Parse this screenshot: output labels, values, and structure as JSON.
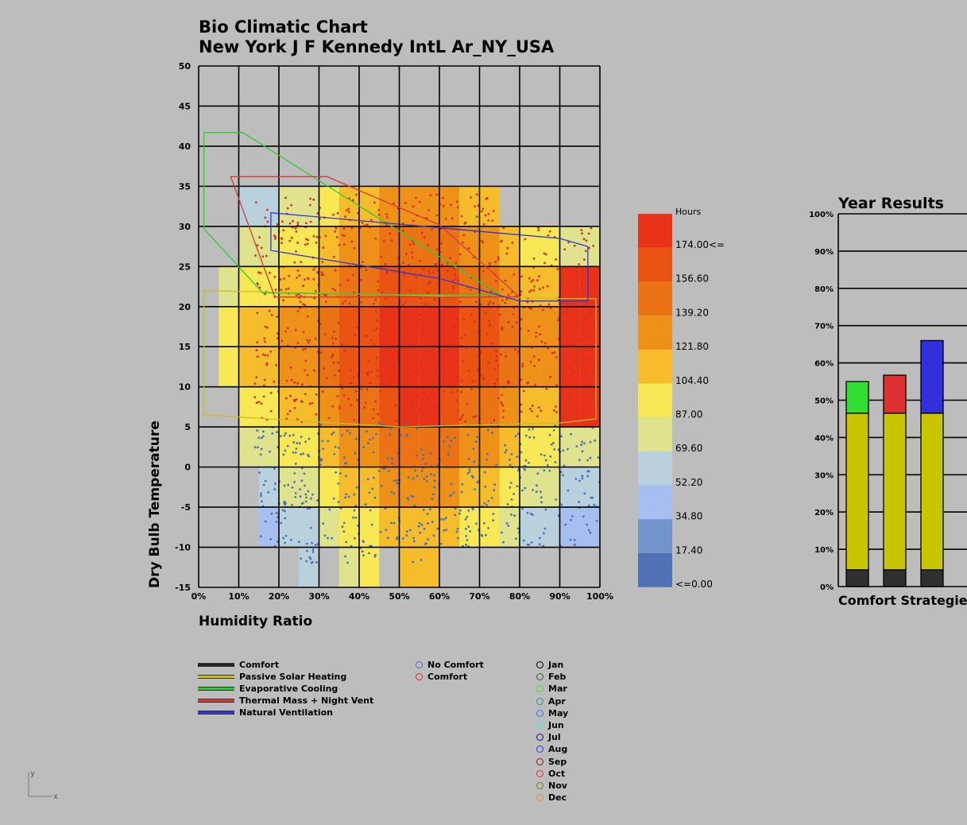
{
  "title": {
    "line1": "Bio Climatic Chart",
    "line2": "New York J F Kennedy IntL Ar_NY_USA"
  },
  "chart_data": [
    {
      "type": "heatmap",
      "title": "Bio Climatic Chart",
      "subtitle": "New York J F Kennedy IntL Ar_NY_USA",
      "xlabel": "Humidity Ratio",
      "ylabel": "Dry Bulb Temperature",
      "x_ticks": [
        "0%",
        "10%",
        "20%",
        "30%",
        "40%",
        "50%",
        "60%",
        "70%",
        "80%",
        "90%",
        "100%"
      ],
      "y_ticks": [
        "-15",
        "-10",
        "-5",
        "0",
        "5",
        "10",
        "15",
        "20",
        "25",
        "30",
        "35",
        "40",
        "45",
        "50"
      ],
      "xlim": [
        0,
        100
      ],
      "ylim": [
        -15,
        50
      ],
      "grid": true,
      "legend_title": "Hours",
      "legend_labels": [
        "174.00<=",
        "156.60",
        "139.20",
        "121.80",
        "104.40",
        "87.00",
        "69.60",
        "52.20",
        "34.80",
        "17.40",
        "<=0.00"
      ],
      "legend_colors": [
        "#e8321a",
        "#eb5313",
        "#ea7413",
        "#ee9119",
        "#f5bd2c",
        "#f9e856",
        "#dfe38e",
        "#b9d1dd",
        "#a6bff0",
        "#7393cc",
        "#4f72b4"
      ],
      "polygons": [
        {
          "name": "Passive Solar Heating",
          "color": "#c8c01f",
          "points": [
            [
              1.3,
              22
            ],
            [
              90,
              21
            ],
            [
              99,
              21
            ],
            [
              99,
              6
            ],
            [
              90,
              5.5
            ],
            [
              50,
              5
            ],
            [
              1.3,
              6.5
            ]
          ]
        },
        {
          "name": "Evaporative Cooling",
          "color": "#2ecc2e",
          "points": [
            [
              1.3,
              41.7
            ],
            [
              11,
              41.7
            ],
            [
              75,
              21.5
            ],
            [
              50,
              21.5
            ],
            [
              19,
              21.7
            ],
            [
              16,
              21.7
            ],
            [
              1.3,
              29.7
            ]
          ]
        },
        {
          "name": "Thermal Mass + Night Vent",
          "color": "#d83838",
          "points": [
            [
              8,
              36.2
            ],
            [
              32,
              36.2
            ],
            [
              60,
              30.2
            ],
            [
              80,
              21.2
            ],
            [
              36,
              21.2
            ],
            [
              19,
              21.2
            ]
          ]
        },
        {
          "name": "Natural Ventilation",
          "color": "#3434d4",
          "points": [
            [
              18,
              31.7
            ],
            [
              90,
              28.5
            ],
            [
              97,
              27.5
            ],
            [
              97,
              20.7
            ],
            [
              80,
              20.7
            ],
            [
              60,
              23.5
            ],
            [
              18,
              27
            ]
          ]
        }
      ],
      "legend_lines": [
        "Comfort",
        "Passive Solar Heating",
        "Evaporative Cooling",
        "Thermal Mass + Night Vent",
        "Natural Ventilation"
      ],
      "legend_points": [
        "No Comfort",
        "Comfort"
      ],
      "legend_months": [
        "Jan",
        "Feb",
        "Mar",
        "Apr",
        "May",
        "Jun",
        "Jul",
        "Aug",
        "Sep",
        "Oct",
        "Nov",
        "Dec"
      ],
      "month_colors": [
        "#000000",
        "#1a6e1a",
        "#2ee82e",
        "#1a9a9a",
        "#2e7ee8",
        "#3ce8e8",
        "#10108e",
        "#2e2ee8",
        "#8e1a1a",
        "#e82e2e",
        "#7e7e0a",
        "#ee8e2e"
      ],
      "point_colors": {
        "no_comfort": "#4d6fb8",
        "comfort": "#d83020"
      }
    },
    {
      "type": "bar",
      "title": "Year Results",
      "xlabel": "Comfort Strategie",
      "y_ticks": [
        "0%",
        "10%",
        "20%",
        "30%",
        "40%",
        "50%",
        "60%",
        "70%",
        "80%",
        "90%",
        "100%"
      ],
      "ylim": [
        0,
        100
      ],
      "grid": true,
      "stacks": [
        [
          {
            "value": 4.5,
            "color": "#303030"
          },
          {
            "value": 42,
            "color": "#c8c400"
          },
          {
            "value": 8.5,
            "color": "#33dd33"
          }
        ],
        [
          {
            "value": 4.5,
            "color": "#303030"
          },
          {
            "value": 42,
            "color": "#c8c400"
          },
          {
            "value": 10.2,
            "color": "#dd3030"
          }
        ],
        [
          {
            "value": 4.5,
            "color": "#303030"
          },
          {
            "value": 42,
            "color": "#c8c400"
          },
          {
            "value": 19.5,
            "color": "#3030dd"
          }
        ]
      ]
    }
  ],
  "axis_indicator": {
    "y": "y",
    "x": "x"
  }
}
